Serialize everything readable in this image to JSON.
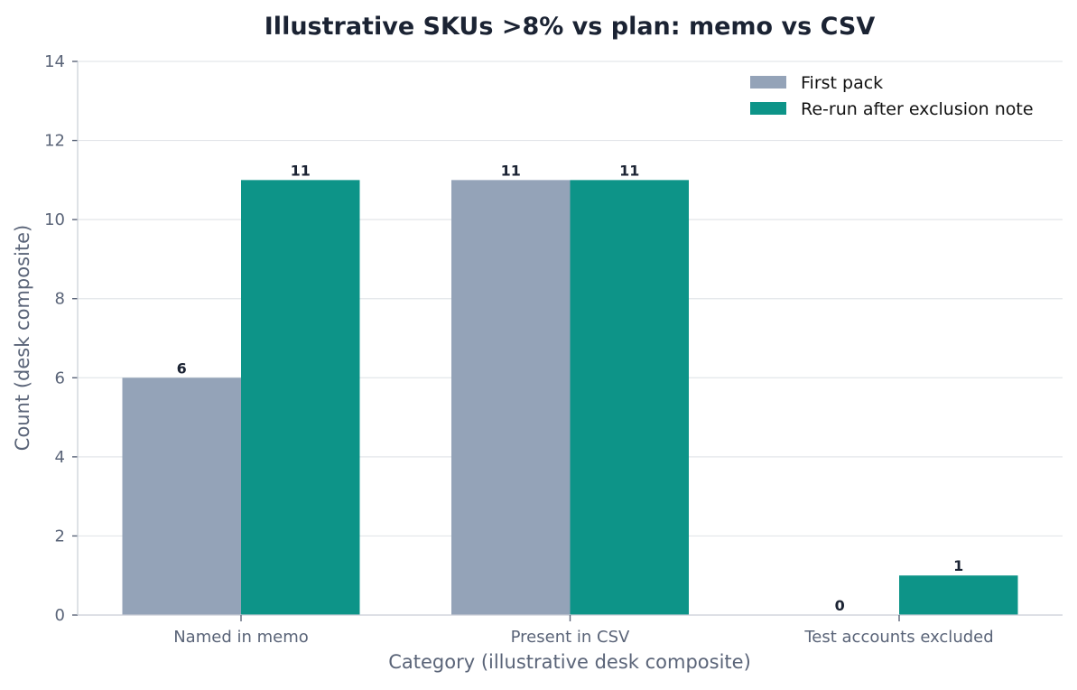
{
  "chart_data": {
    "type": "bar",
    "title": "Illustrative SKUs >8% vs plan: memo vs CSV",
    "xlabel": "Category (illustrative desk composite)",
    "ylabel": "Count (desk composite)",
    "categories": [
      "Named in memo",
      "Present in CSV",
      "Test accounts excluded"
    ],
    "series": [
      {
        "name": "First pack",
        "values": [
          6,
          11,
          0
        ],
        "color": "#94a3b8"
      },
      {
        "name": "Re-run after exclusion note",
        "values": [
          11,
          11,
          1
        ],
        "color": "#0d9488"
      }
    ],
    "ylim": [
      0,
      14
    ],
    "yticks": [
      0,
      2,
      4,
      6,
      8,
      10,
      12,
      14
    ],
    "grid": "horizontal",
    "legend_position": "top-right"
  }
}
